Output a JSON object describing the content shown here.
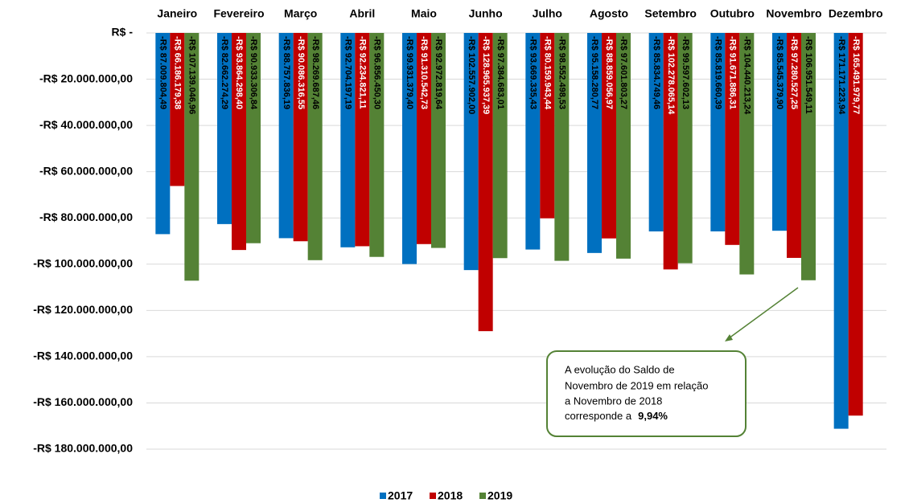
{
  "chart_data": {
    "type": "bar",
    "categories": [
      "Janeiro",
      "Fevereiro",
      "Março",
      "Abril",
      "Maio",
      "Junho",
      "Julho",
      "Agosto",
      "Setembro",
      "Outubro",
      "Novembro",
      "Dezembro"
    ],
    "series": [
      {
        "name": "2017",
        "color": "#0070c0",
        "values": [
          -87009804.49,
          -82662274.29,
          -88757836.19,
          -92704197.19,
          -99931379.4,
          -102557902.0,
          -93669335.43,
          -95158280.77,
          -85834749.46,
          -85819660.39,
          -85545379.9,
          -171171223.94
        ],
        "value_labels": [
          "-R$ 87.009.804,49",
          "-R$ 82.662.274,29",
          "-R$ 88.757.836,19",
          "-R$ 92.704.197,19",
          "-R$ 99.931.379,40",
          "-R$ 102.557.902,00",
          "-R$ 93.669.335,43",
          "-R$ 95.158.280,77",
          "-R$ 85.834.749,46",
          "-R$ 85.819.660,39",
          "-R$ 85.545.379,90",
          "-R$ 171.171.223,94"
        ]
      },
      {
        "name": "2018",
        "color": "#c00000",
        "values": [
          -66186179.38,
          -93864298.4,
          -90086316.55,
          -92234821.11,
          -91310542.73,
          -128965937.39,
          -80159943.44,
          -88859056.97,
          -102278065.14,
          -91671886.31,
          -97280527.25,
          -165491979.77
        ],
        "value_labels": [
          "-R$ 66.186.179,38",
          "-R$ 93.864.298,40",
          "-R$ 90.086.316,55",
          "-R$ 92.234.821,11",
          "-R$ 91.310.542,73",
          "-R$ 128.965.937,39",
          "-R$ 80.159.943,44",
          "-R$ 88.859.056,97",
          "-R$ 102.278.065,14",
          "-R$ 91.671.886,31",
          "-R$ 97.280.527,25",
          "-R$ 165.491.979,77"
        ]
      },
      {
        "name": "2019",
        "color": "#548235",
        "values": [
          -107139046.96,
          -90933306.84,
          -98269687.46,
          -96856450.3,
          -92972819.64,
          -97384683.01,
          -98552498.53,
          -97601803.27,
          -99597602.13,
          -104440213.24,
          -106951549.11,
          null
        ],
        "value_labels": [
          "-R$ 107.139.046,96",
          "-R$ 90.933.306,84",
          "-R$ 98.269.687,46",
          "-R$ 96.856.450,30",
          "-R$ 92.972.819,64",
          "-R$ 97.384.683,01",
          "-R$ 98.552.498,53",
          "-R$ 97.601.803,27",
          "-R$ 99.597.602,13",
          "-R$ 104.440.213,24",
          "-R$ 106.951.549,11",
          null
        ]
      }
    ],
    "ylim": [
      -180000000,
      0
    ],
    "yticks": [
      {
        "value": 0,
        "label": "R$ -"
      },
      {
        "value": -20000000,
        "label": "-R$ 20.000.000,00"
      },
      {
        "value": -40000000,
        "label": "-R$ 40.000.000,00"
      },
      {
        "value": -60000000,
        "label": "-R$ 60.000.000,00"
      },
      {
        "value": -80000000,
        "label": "-R$ 80.000.000,00"
      },
      {
        "value": -100000000,
        "label": "-R$ 100.000.000,00"
      },
      {
        "value": -120000000,
        "label": "-R$ 120.000.000,00"
      },
      {
        "value": -140000000,
        "label": "-R$ 140.000.000,00"
      },
      {
        "value": -160000000,
        "label": "-R$ 160.000.000,00"
      },
      {
        "value": -180000000,
        "label": "-R$ 180.000.000,00"
      }
    ],
    "grid": true,
    "legend": "bottom",
    "annotation": {
      "lines": [
        "A evolução do Saldo de",
        "Novembro de 2019 em relação",
        "a Novembro de 2018",
        "corresponde a"
      ],
      "highlight": "9,94%"
    }
  }
}
